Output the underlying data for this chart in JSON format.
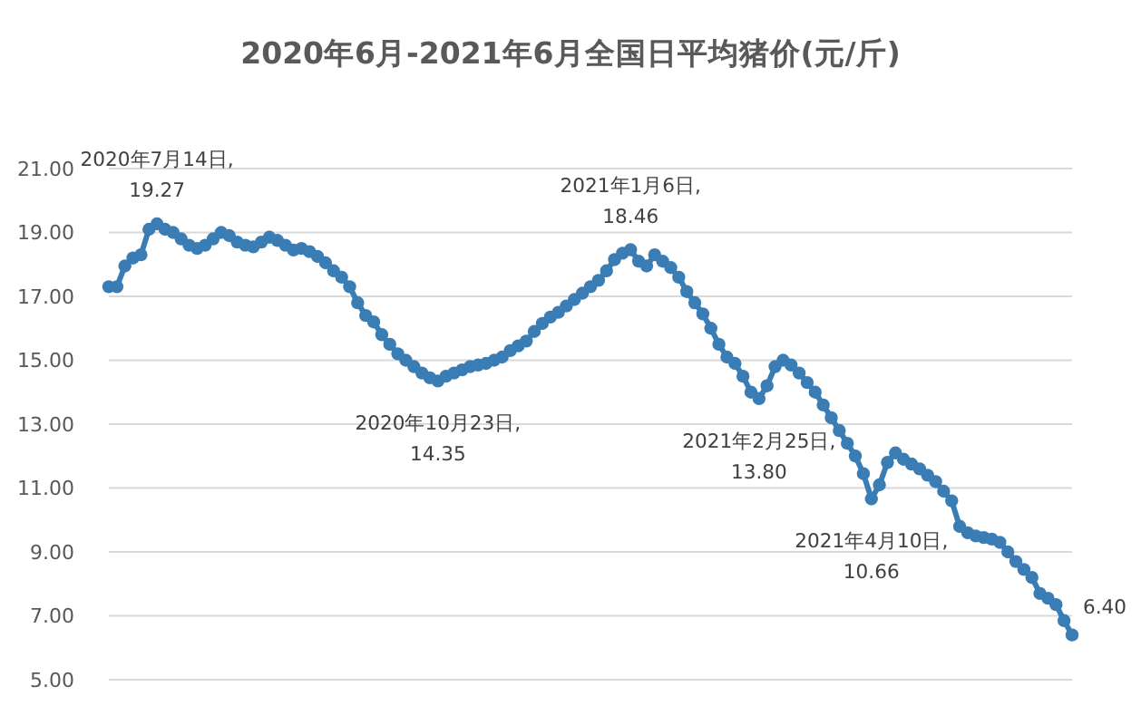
{
  "chart_data": {
    "type": "line",
    "title": "2020年6月-2021年6月全国日平均猪价(元/斤)",
    "categories": [
      null,
      null,
      null,
      null,
      null,
      null,
      null,
      null,
      null,
      null,
      null,
      null,
      null,
      null,
      null,
      null,
      null,
      null,
      null,
      null,
      null,
      null,
      null,
      null,
      null,
      null,
      null,
      null,
      null,
      null,
      null,
      null,
      null,
      null,
      null,
      null,
      null,
      null,
      null,
      null,
      null,
      null,
      null,
      null,
      null,
      null,
      null,
      null,
      null,
      null,
      null,
      null,
      null,
      null,
      null,
      null,
      null,
      null,
      null,
      null,
      null,
      null,
      null,
      null,
      null,
      null,
      null,
      null,
      null,
      null,
      null,
      null,
      null,
      null,
      null,
      null,
      null,
      null,
      null,
      null,
      null,
      null,
      null,
      null,
      null,
      null,
      null,
      null,
      null,
      null,
      null,
      null,
      null,
      null,
      null,
      null,
      null,
      null,
      null,
      null,
      null,
      null,
      null,
      null,
      null,
      null,
      null,
      null,
      null,
      null,
      null,
      null,
      null,
      null,
      null,
      null,
      null,
      null,
      null,
      null,
      null
    ],
    "values": [
      17.3,
      17.3,
      17.95,
      18.2,
      18.3,
      19.1,
      19.27,
      19.1,
      19.0,
      18.8,
      18.6,
      18.5,
      18.6,
      18.8,
      19.0,
      18.9,
      18.7,
      18.6,
      18.55,
      18.7,
      18.85,
      18.75,
      18.6,
      18.45,
      18.5,
      18.4,
      18.25,
      18.05,
      17.8,
      17.6,
      17.3,
      16.8,
      16.4,
      16.2,
      15.8,
      15.5,
      15.2,
      15.0,
      14.8,
      14.6,
      14.45,
      14.35,
      14.5,
      14.6,
      14.7,
      14.8,
      14.85,
      14.9,
      15.0,
      15.1,
      15.3,
      15.45,
      15.6,
      15.9,
      16.15,
      16.35,
      16.5,
      16.7,
      16.9,
      17.1,
      17.3,
      17.5,
      17.8,
      18.15,
      18.35,
      18.46,
      18.1,
      17.95,
      18.3,
      18.1,
      17.9,
      17.6,
      17.15,
      16.8,
      16.45,
      16.0,
      15.5,
      15.1,
      14.9,
      14.5,
      14.0,
      13.8,
      14.2,
      14.8,
      15.0,
      14.85,
      14.6,
      14.3,
      14.0,
      13.6,
      13.2,
      12.8,
      12.4,
      12.0,
      11.45,
      10.66,
      11.1,
      11.8,
      12.1,
      11.9,
      11.75,
      11.6,
      11.4,
      11.2,
      10.9,
      10.6,
      9.8,
      9.6,
      9.5,
      9.45,
      9.4,
      9.3,
      9.0,
      8.7,
      8.45,
      8.2,
      7.7,
      7.55,
      7.35,
      6.85,
      6.4
    ],
    "value_labels": [
      null,
      null,
      null,
      null,
      null,
      null,
      "2020年7月14日,\n19.27",
      null,
      null,
      null,
      null,
      null,
      null,
      null,
      null,
      null,
      null,
      null,
      null,
      null,
      null,
      null,
      null,
      null,
      null,
      null,
      null,
      null,
      null,
      null,
      null,
      null,
      null,
      null,
      null,
      null,
      null,
      null,
      null,
      null,
      null,
      "2020年10月23日,\n14.35",
      null,
      null,
      null,
      null,
      null,
      null,
      null,
      null,
      null,
      null,
      null,
      null,
      null,
      null,
      null,
      null,
      null,
      null,
      null,
      null,
      null,
      null,
      null,
      "2021年1月6日,\n18.46",
      null,
      null,
      null,
      null,
      null,
      null,
      null,
      null,
      null,
      null,
      null,
      null,
      null,
      null,
      null,
      "2021年2月25日,\n13.80",
      null,
      null,
      null,
      null,
      null,
      null,
      null,
      null,
      null,
      null,
      null,
      null,
      null,
      "2021年4月10日,\n10.66",
      null,
      null,
      null,
      null,
      null,
      null,
      null,
      null,
      null,
      null,
      null,
      null,
      null,
      null,
      null,
      null,
      null,
      null,
      null,
      null,
      null,
      null,
      null,
      null,
      "6.40"
    ],
    "color": "#3a7db5",
    "ylim": [
      5,
      21
    ],
    "yticks": [
      {
        "value": 5,
        "label": "5.00"
      },
      {
        "value": 7,
        "label": "7.00"
      },
      {
        "value": 9,
        "label": "9.00"
      },
      {
        "value": 11,
        "label": "11.00"
      },
      {
        "value": 13,
        "label": "13.00"
      },
      {
        "value": 15,
        "label": "15.00"
      },
      {
        "value": 17,
        "label": "17.00"
      },
      {
        "value": 19,
        "label": "19.00"
      },
      {
        "value": 21,
        "label": "21.00"
      }
    ],
    "grid": "y",
    "marker": "circle",
    "line_style": "solid",
    "tick_labels": "y"
  }
}
